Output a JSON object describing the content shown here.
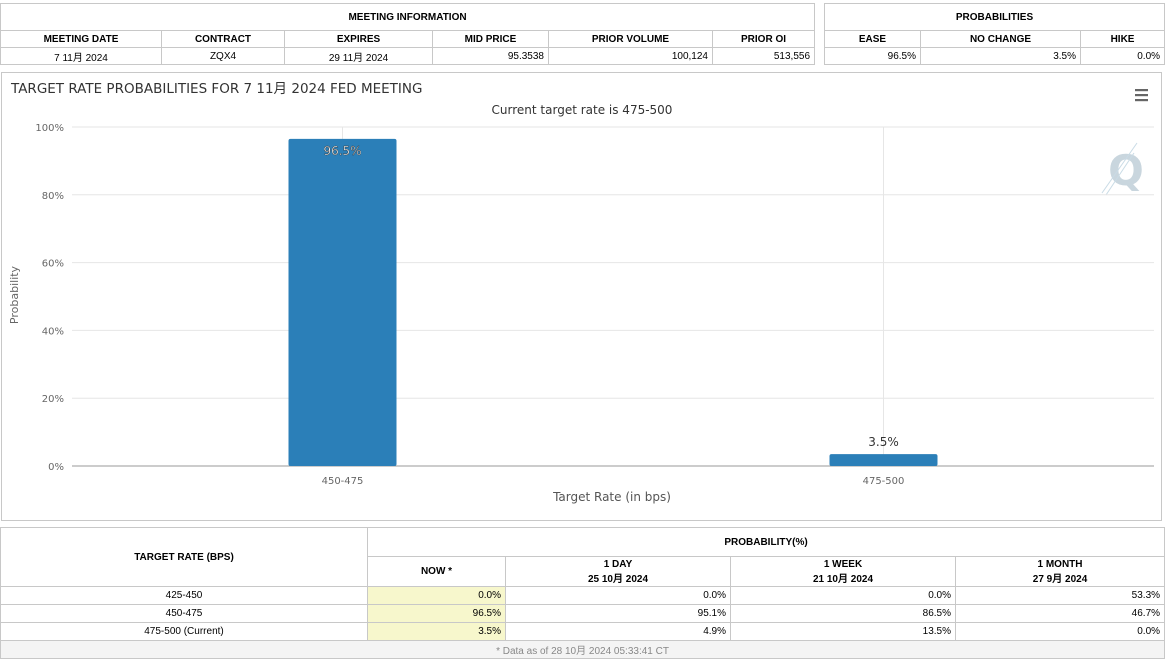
{
  "meeting_info": {
    "header": "MEETING INFORMATION",
    "columns": [
      "MEETING DATE",
      "CONTRACT",
      "EXPIRES",
      "MID PRICE",
      "PRIOR VOLUME",
      "PRIOR OI"
    ],
    "row": [
      "7 11月 2024",
      "ZQX4",
      "29 11月 2024",
      "95.3538",
      "100,124",
      "513,556"
    ]
  },
  "probabilities": {
    "header": "PROBABILITIES",
    "columns": [
      "EASE",
      "NO CHANGE",
      "HIKE"
    ],
    "row": [
      "96.5%",
      "3.5%",
      "0.0%"
    ]
  },
  "chart_data": {
    "type": "bar",
    "title": "TARGET RATE PROBABILITIES FOR 7 11月 2024 FED MEETING",
    "subtitle": "Current target rate is 475-500",
    "xlabel": "Target Rate (in bps)",
    "ylabel": "Probability",
    "categories": [
      "450-475",
      "475-500"
    ],
    "values": [
      96.5,
      3.5
    ],
    "data_labels": [
      "96.5%",
      "3.5%"
    ],
    "yticks": [
      "0%",
      "20%",
      "40%",
      "60%",
      "80%",
      "100%"
    ],
    "ylim": [
      0,
      100
    ],
    "grid": true,
    "bar_color": "#2b7fb8",
    "watermark": "Q"
  },
  "rates_table": {
    "target_rate_header": "TARGET RATE (BPS)",
    "probability_header": "PROBABILITY(%)",
    "columns": [
      {
        "label": "NOW *",
        "date": ""
      },
      {
        "label": "1 DAY",
        "date": "25 10月 2024"
      },
      {
        "label": "1 WEEK",
        "date": "21 10月 2024"
      },
      {
        "label": "1 MONTH",
        "date": "27 9月 2024"
      }
    ],
    "rows": [
      {
        "rate": "425-450",
        "values": [
          "0.0%",
          "0.0%",
          "0.0%",
          "53.3%"
        ]
      },
      {
        "rate": "450-475",
        "values": [
          "96.5%",
          "95.1%",
          "86.5%",
          "46.7%"
        ]
      },
      {
        "rate": "475-500 (Current)",
        "values": [
          "3.5%",
          "4.9%",
          "13.5%",
          "0.0%"
        ]
      }
    ],
    "footnote": "* Data as of 28 10月 2024 05:33:41 CT"
  },
  "colors": {
    "accent": "#2b7fb8",
    "now_highlight": "#f7f7cc"
  }
}
